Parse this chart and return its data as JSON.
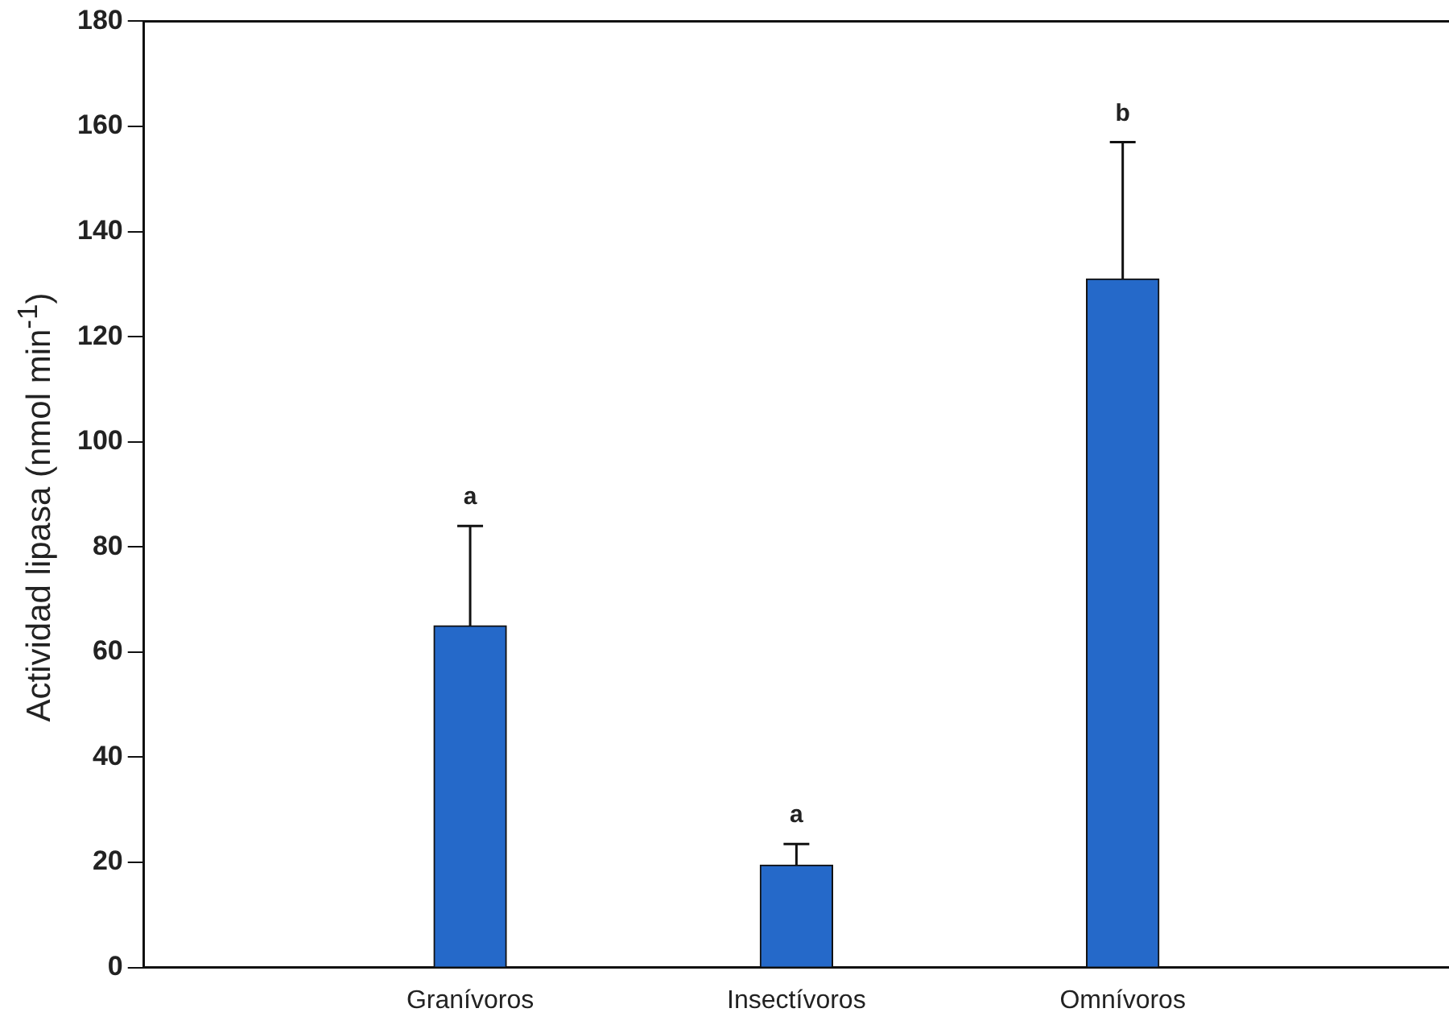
{
  "chart_data": {
    "type": "bar",
    "ylabel": "Actividad lipasa (nmol min$^{-1}$)",
    "categories": [
      "Granívoros",
      "Insectívoros",
      "Omnívoros"
    ],
    "values": [
      65,
      19.5,
      131
    ],
    "errors": [
      [
        65,
        84
      ],
      [
        19.5,
        23.5
      ],
      [
        131,
        157
      ]
    ],
    "color": "#2569c9",
    "ylim": [
      0,
      180
    ],
    "yticks": [
      0,
      20,
      40,
      60,
      80,
      100,
      120,
      140,
      160,
      180
    ],
    "grid": false,
    "legend": false,
    "annotations": [
      "a",
      "a",
      "b"
    ]
  }
}
